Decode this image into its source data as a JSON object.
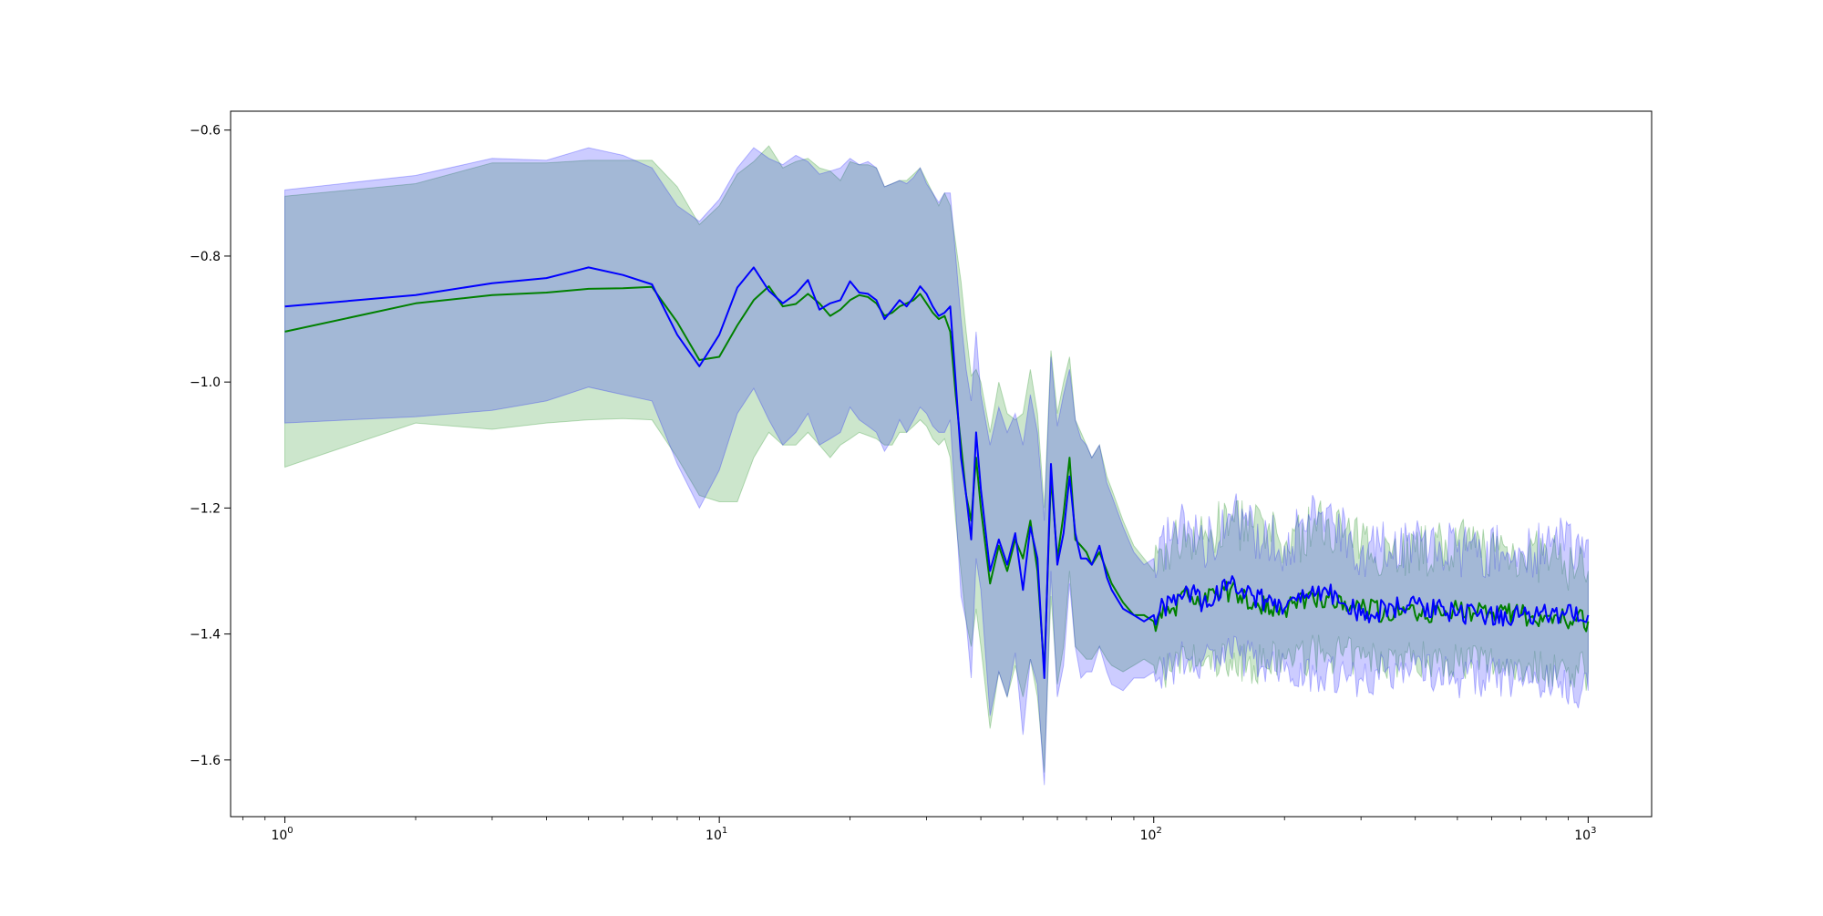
{
  "chart_data": {
    "type": "line",
    "title": "",
    "xlabel": "",
    "ylabel": "",
    "x_scale": "log",
    "xlim": [
      0.75,
      1400
    ],
    "ylim": [
      -1.69,
      -0.57
    ],
    "grid": false,
    "legend": "none",
    "x_ticks": [
      {
        "value": 1,
        "base": "10",
        "exp": "0"
      },
      {
        "value": 10,
        "base": "10",
        "exp": "1"
      },
      {
        "value": 100,
        "base": "10",
        "exp": "2"
      },
      {
        "value": 1000,
        "base": "10",
        "exp": "3"
      }
    ],
    "y_ticks": [
      {
        "value": -0.6,
        "label": "−0.6"
      },
      {
        "value": -0.8,
        "label": "−0.8"
      },
      {
        "value": -1.0,
        "label": "−1.0"
      },
      {
        "value": -1.2,
        "label": "−1.2"
      },
      {
        "value": -1.4,
        "label": "−1.4"
      },
      {
        "value": -1.6,
        "label": "−1.6"
      }
    ],
    "series": [
      {
        "color": "#008000",
        "band_color": "#008000",
        "band_opacity": 0.2,
        "x": [
          1,
          2,
          3,
          4,
          5,
          6,
          7,
          8,
          9,
          10,
          11,
          12,
          13,
          14,
          15,
          16,
          17,
          18,
          19,
          20,
          21,
          22,
          23,
          24,
          25,
          26,
          27,
          28,
          29,
          30,
          31,
          32,
          33,
          34,
          35,
          36,
          37,
          38,
          39,
          40,
          42,
          44,
          46,
          48,
          50,
          52,
          54,
          56,
          58,
          60,
          62,
          64,
          66,
          68,
          70,
          72,
          75,
          78,
          80,
          85,
          90,
          95,
          100,
          110,
          120,
          130,
          150,
          170,
          200,
          250,
          300,
          400,
          500,
          700,
          1000
        ],
        "y": [
          -0.92,
          -0.875,
          -0.862,
          -0.858,
          -0.852,
          -0.851,
          -0.849,
          -0.905,
          -0.965,
          -0.96,
          -0.91,
          -0.87,
          -0.848,
          -0.88,
          -0.876,
          -0.86,
          -0.875,
          -0.895,
          -0.885,
          -0.87,
          -0.862,
          -0.865,
          -0.875,
          -0.895,
          -0.89,
          -0.88,
          -0.875,
          -0.87,
          -0.86,
          -0.875,
          -0.89,
          -0.9,
          -0.895,
          -0.92,
          -1.02,
          -1.1,
          -1.18,
          -1.22,
          -1.12,
          -1.2,
          -1.32,
          -1.26,
          -1.3,
          -1.25,
          -1.28,
          -1.22,
          -1.3,
          -1.46,
          -1.15,
          -1.28,
          -1.21,
          -1.12,
          -1.25,
          -1.26,
          -1.27,
          -1.29,
          -1.27,
          -1.3,
          -1.32,
          -1.35,
          -1.37,
          -1.37,
          -1.38,
          -1.36,
          -1.34,
          -1.35,
          -1.33,
          -1.35,
          -1.36,
          -1.34,
          -1.36,
          -1.37,
          -1.36,
          -1.37,
          -1.38
        ],
        "upper": [
          -0.705,
          -0.685,
          -0.652,
          -0.652,
          -0.648,
          -0.648,
          -0.648,
          -0.69,
          -0.75,
          -0.72,
          -0.67,
          -0.65,
          -0.625,
          -0.66,
          -0.65,
          -0.645,
          -0.66,
          -0.665,
          -0.68,
          -0.65,
          -0.655,
          -0.655,
          -0.66,
          -0.69,
          -0.685,
          -0.68,
          -0.68,
          -0.67,
          -0.66,
          -0.68,
          -0.7,
          -0.72,
          -0.7,
          -0.72,
          -0.78,
          -0.84,
          -0.92,
          -0.99,
          -0.98,
          -1.0,
          -1.08,
          -1.0,
          -1.05,
          -1.06,
          -1.05,
          -0.98,
          -1.05,
          -1.2,
          -0.95,
          -1.05,
          -1.0,
          -0.96,
          -1.06,
          -1.08,
          -1.1,
          -1.12,
          -1.1,
          -1.15,
          -1.17,
          -1.22,
          -1.26,
          -1.28,
          -1.3,
          -1.26,
          -1.24,
          -1.25,
          -1.22,
          -1.23,
          -1.26,
          -1.22,
          -1.26,
          -1.27,
          -1.26,
          -1.27,
          -1.3
        ],
        "lower": [
          -1.135,
          -1.065,
          -1.075,
          -1.065,
          -1.06,
          -1.058,
          -1.06,
          -1.12,
          -1.18,
          -1.19,
          -1.19,
          -1.12,
          -1.08,
          -1.1,
          -1.1,
          -1.08,
          -1.1,
          -1.12,
          -1.1,
          -1.09,
          -1.08,
          -1.085,
          -1.09,
          -1.1,
          -1.1,
          -1.08,
          -1.08,
          -1.07,
          -1.06,
          -1.07,
          -1.09,
          -1.1,
          -1.09,
          -1.12,
          -1.22,
          -1.3,
          -1.38,
          -1.42,
          -1.36,
          -1.42,
          -1.55,
          -1.46,
          -1.5,
          -1.45,
          -1.5,
          -1.44,
          -1.5,
          -1.62,
          -1.34,
          -1.48,
          -1.42,
          -1.3,
          -1.42,
          -1.43,
          -1.44,
          -1.44,
          -1.42,
          -1.44,
          -1.45,
          -1.46,
          -1.45,
          -1.44,
          -1.45,
          -1.46,
          -1.44,
          -1.45,
          -1.44,
          -1.45,
          -1.44,
          -1.43,
          -1.44,
          -1.44,
          -1.44,
          -1.45,
          -1.46
        ]
      },
      {
        "color": "#0000ff",
        "band_color": "#0000ff",
        "band_opacity": 0.2,
        "x": [
          1,
          2,
          3,
          4,
          5,
          6,
          7,
          8,
          9,
          10,
          11,
          12,
          13,
          14,
          15,
          16,
          17,
          18,
          19,
          20,
          21,
          22,
          23,
          24,
          25,
          26,
          27,
          28,
          29,
          30,
          31,
          32,
          33,
          34,
          35,
          36,
          37,
          38,
          39,
          40,
          42,
          44,
          46,
          48,
          50,
          52,
          54,
          56,
          58,
          60,
          62,
          64,
          66,
          68,
          70,
          72,
          75,
          78,
          80,
          85,
          90,
          95,
          100,
          110,
          120,
          130,
          150,
          170,
          200,
          250,
          300,
          400,
          500,
          700,
          1000
        ],
        "y": [
          -0.88,
          -0.862,
          -0.843,
          -0.835,
          -0.818,
          -0.83,
          -0.845,
          -0.925,
          -0.975,
          -0.925,
          -0.85,
          -0.818,
          -0.855,
          -0.875,
          -0.86,
          -0.838,
          -0.885,
          -0.875,
          -0.87,
          -0.84,
          -0.858,
          -0.86,
          -0.87,
          -0.9,
          -0.885,
          -0.87,
          -0.88,
          -0.865,
          -0.848,
          -0.86,
          -0.88,
          -0.895,
          -0.89,
          -0.88,
          -1.0,
          -1.12,
          -1.18,
          -1.25,
          -1.08,
          -1.17,
          -1.3,
          -1.25,
          -1.29,
          -1.24,
          -1.33,
          -1.23,
          -1.28,
          -1.47,
          -1.13,
          -1.29,
          -1.24,
          -1.15,
          -1.24,
          -1.28,
          -1.28,
          -1.29,
          -1.26,
          -1.31,
          -1.33,
          -1.36,
          -1.37,
          -1.38,
          -1.37,
          -1.35,
          -1.33,
          -1.35,
          -1.32,
          -1.34,
          -1.36,
          -1.33,
          -1.37,
          -1.35,
          -1.37,
          -1.37,
          -1.37
        ],
        "upper": [
          -0.695,
          -0.672,
          -0.645,
          -0.648,
          -0.628,
          -0.64,
          -0.66,
          -0.72,
          -0.745,
          -0.71,
          -0.66,
          -0.628,
          -0.645,
          -0.655,
          -0.64,
          -0.65,
          -0.67,
          -0.665,
          -0.66,
          -0.645,
          -0.655,
          -0.65,
          -0.66,
          -0.69,
          -0.685,
          -0.68,
          -0.685,
          -0.675,
          -0.66,
          -0.685,
          -0.7,
          -0.715,
          -0.7,
          -0.7,
          -0.8,
          -0.9,
          -0.98,
          -1.03,
          -0.92,
          -1.02,
          -1.1,
          -1.04,
          -1.08,
          -1.05,
          -1.1,
          -1.02,
          -1.08,
          -1.22,
          -0.96,
          -1.07,
          -1.02,
          -0.98,
          -1.06,
          -1.09,
          -1.1,
          -1.12,
          -1.1,
          -1.16,
          -1.18,
          -1.23,
          -1.27,
          -1.29,
          -1.28,
          -1.25,
          -1.22,
          -1.26,
          -1.21,
          -1.24,
          -1.26,
          -1.2,
          -1.27,
          -1.25,
          -1.27,
          -1.27,
          -1.25
        ],
        "lower": [
          -1.065,
          -1.055,
          -1.045,
          -1.03,
          -1.008,
          -1.02,
          -1.03,
          -1.13,
          -1.2,
          -1.14,
          -1.05,
          -1.01,
          -1.06,
          -1.1,
          -1.08,
          -1.05,
          -1.1,
          -1.09,
          -1.08,
          -1.04,
          -1.06,
          -1.07,
          -1.08,
          -1.11,
          -1.09,
          -1.06,
          -1.08,
          -1.06,
          -1.04,
          -1.05,
          -1.07,
          -1.08,
          -1.08,
          -1.06,
          -1.2,
          -1.34,
          -1.38,
          -1.47,
          -1.28,
          -1.33,
          -1.53,
          -1.46,
          -1.5,
          -1.43,
          -1.56,
          -1.44,
          -1.48,
          -1.64,
          -1.3,
          -1.5,
          -1.45,
          -1.32,
          -1.42,
          -1.47,
          -1.46,
          -1.46,
          -1.42,
          -1.46,
          -1.48,
          -1.49,
          -1.47,
          -1.47,
          -1.46,
          -1.45,
          -1.44,
          -1.44,
          -1.43,
          -1.44,
          -1.46,
          -1.46,
          -1.47,
          -1.45,
          -1.47,
          -1.47,
          -1.49
        ]
      }
    ]
  }
}
